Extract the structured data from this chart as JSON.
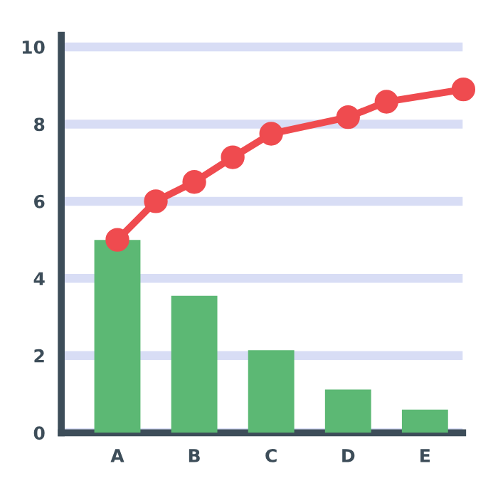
{
  "chart_data": {
    "type": "bar",
    "categories": [
      "A",
      null,
      "B",
      null,
      "C",
      null,
      "D",
      null,
      "E",
      null
    ],
    "ylim": [
      0,
      10.3
    ],
    "yticks": [
      0,
      2,
      4,
      6,
      8,
      10
    ],
    "grid": "y",
    "series": [
      {
        "color": "#5cb874",
        "values": [
          5.0,
          null,
          3.55,
          null,
          2.14,
          null,
          1.12,
          null,
          0.6,
          null
        ]
      },
      {
        "type": "line",
        "color": "#ef4b4f",
        "marker": "circle",
        "line_style": "solid",
        "values": [
          5.0,
          6.0,
          6.5,
          7.14,
          7.75,
          null,
          8.18,
          8.58,
          null,
          8.9
        ]
      }
    ]
  }
}
